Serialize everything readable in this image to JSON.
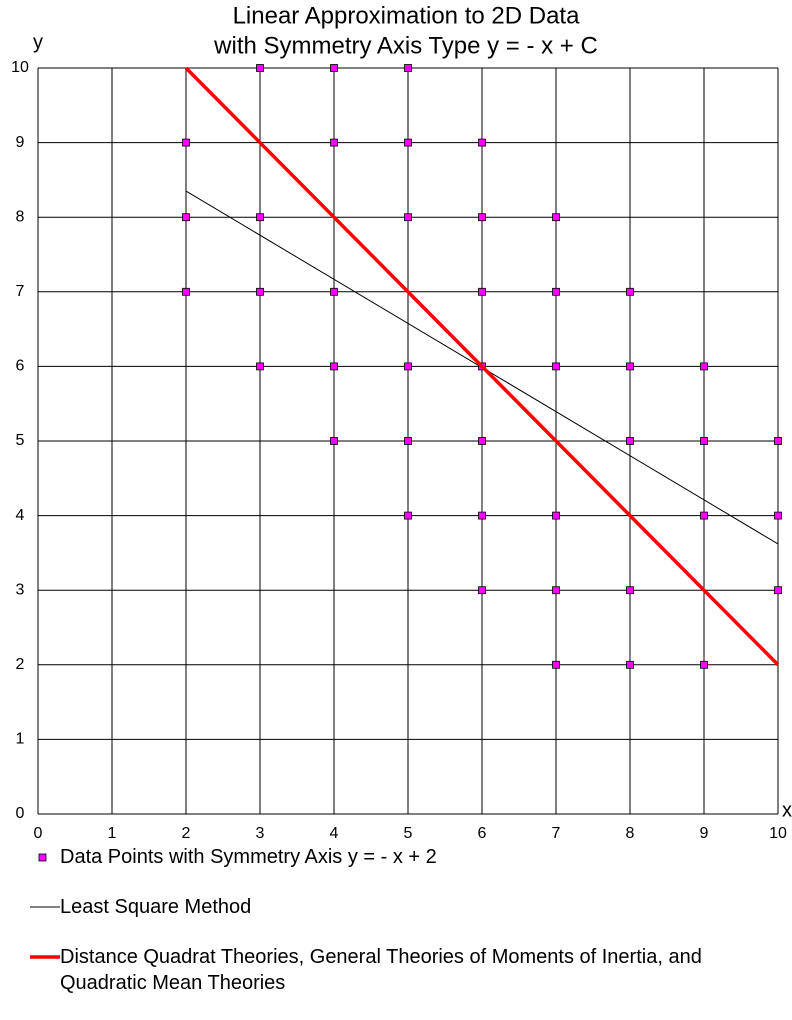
{
  "chart_data": {
    "type": "scatter",
    "title": [
      "Linear Approximation to 2D Data",
      "with Symmetry Axis Type y = - x + C"
    ],
    "x_label": "x",
    "y_label": "y",
    "xlim": [
      0,
      10
    ],
    "ylim": [
      0,
      10
    ],
    "xticks": [
      0,
      1,
      2,
      3,
      4,
      5,
      6,
      7,
      8,
      9,
      10
    ],
    "yticks": [
      0,
      1,
      2,
      3,
      4,
      5,
      6,
      7,
      8,
      9,
      10
    ],
    "grid": true,
    "series": [
      {
        "name": "Data Points with Symmetry Axis y = - x + 2",
        "mode": "markers",
        "color": "#ff00ff",
        "x": [
          3,
          4,
          5,
          2,
          4,
          5,
          6,
          2,
          3,
          5,
          6,
          7,
          2,
          3,
          4,
          6,
          7,
          8,
          3,
          4,
          5,
          6,
          7,
          8,
          9,
          4,
          5,
          6,
          8,
          9,
          10,
          5,
          6,
          7,
          9,
          10,
          6,
          7,
          8,
          10,
          7,
          8,
          9
        ],
        "values": [
          10,
          10,
          10,
          9,
          9,
          9,
          9,
          8,
          8,
          8,
          8,
          8,
          7,
          7,
          7,
          7,
          7,
          7,
          6,
          6,
          6,
          6,
          6,
          6,
          6,
          5,
          5,
          5,
          5,
          5,
          5,
          4,
          4,
          4,
          4,
          4,
          3,
          3,
          3,
          3,
          2,
          2,
          2
        ]
      },
      {
        "name": "Least Square Method",
        "mode": "line",
        "color": "#000000",
        "line_width": 1,
        "x": [
          2,
          10
        ],
        "values": [
          8.35,
          3.62
        ]
      },
      {
        "name": "Distance Quadrat Theories, General Theories of Moments of Inertia, and Quadratic Mean Theories",
        "mode": "line",
        "color": "#ff0000",
        "line_width": 3.5,
        "x": [
          2,
          10
        ],
        "values": [
          10,
          2
        ]
      }
    ]
  }
}
